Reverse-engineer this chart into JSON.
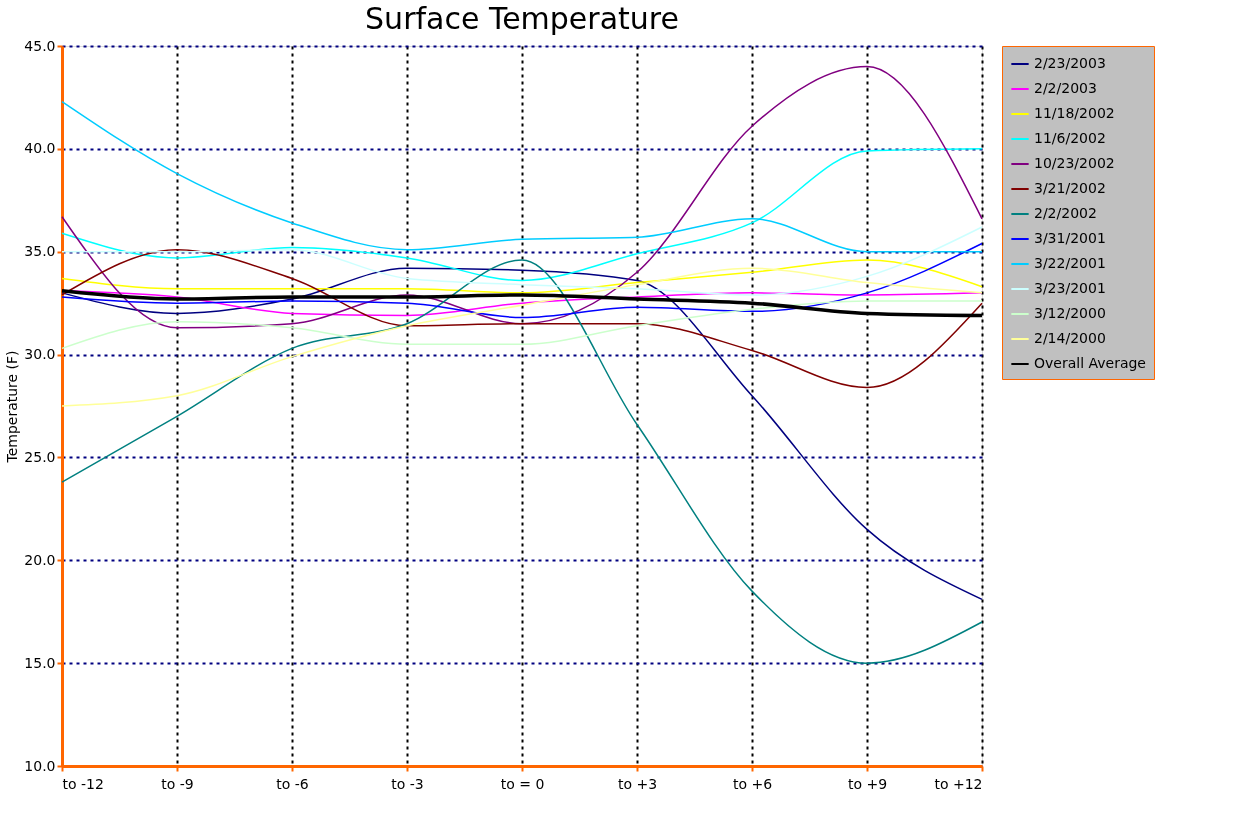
{
  "chart_data": {
    "type": "line",
    "title": "Surface Temperature",
    "ylabel": "Temperature (F)",
    "categories": [
      "to -12",
      "to -9",
      "to -6",
      "to -3",
      "to = 0",
      "to +3",
      "to +6",
      "to +9",
      "to +12"
    ],
    "series": [
      {
        "name": "2/23/2003",
        "color": "#000080",
        "values": [
          33.0,
          32.0,
          32.7,
          34.2,
          34.1,
          33.6,
          28.0,
          21.5,
          18.1
        ]
      },
      {
        "name": "2/2/2003",
        "color": "#ff00ff",
        "values": [
          33.1,
          32.8,
          32.0,
          31.9,
          32.5,
          32.8,
          33.0,
          32.9,
          33.0
        ]
      },
      {
        "name": "11/18/2002",
        "color": "#ffff00",
        "values": [
          33.7,
          33.2,
          33.2,
          33.2,
          33.0,
          33.5,
          34.0,
          34.6,
          33.3
        ]
      },
      {
        "name": "11/6/2002",
        "color": "#00ffff",
        "values": [
          35.9,
          34.7,
          35.2,
          34.7,
          33.6,
          34.9,
          36.4,
          39.9,
          40.0
        ]
      },
      {
        "name": "10/23/2002",
        "color": "#800080",
        "values": [
          36.7,
          31.3,
          31.5,
          32.9,
          31.5,
          34.0,
          41.1,
          44.0,
          36.6
        ]
      },
      {
        "name": "3/21/2002",
        "color": "#800000",
        "values": [
          32.9,
          35.1,
          33.7,
          31.4,
          31.5,
          31.5,
          30.2,
          28.4,
          32.5
        ]
      },
      {
        "name": "2/2/2002",
        "color": "#008080",
        "values": [
          23.8,
          27.0,
          30.3,
          31.5,
          34.6,
          26.6,
          18.5,
          15.0,
          17.0
        ]
      },
      {
        "name": "3/31/2001",
        "color": "#0000ff",
        "values": [
          32.8,
          32.5,
          32.6,
          32.5,
          31.8,
          32.3,
          32.1,
          33.0,
          35.4
        ]
      },
      {
        "name": "3/22/2001",
        "color": "#00ccff",
        "values": [
          42.3,
          38.8,
          36.4,
          35.1,
          35.6,
          35.7,
          36.6,
          35.0,
          35.0
        ]
      },
      {
        "name": "3/23/2001",
        "color": "#ccffff",
        "values": [
          35.0,
          35.0,
          35.1,
          33.7,
          33.4,
          33.2,
          32.9,
          33.8,
          36.2
        ]
      },
      {
        "name": "3/12/2000",
        "color": "#ccffcc",
        "values": [
          30.3,
          31.6,
          31.3,
          30.5,
          30.5,
          31.4,
          32.2,
          32.6,
          32.6
        ]
      },
      {
        "name": "2/14/2000",
        "color": "#ffff99",
        "values": [
          27.5,
          28.0,
          29.9,
          31.4,
          32.4,
          33.4,
          34.2,
          33.5,
          33.0
        ]
      },
      {
        "name": "Overall Average",
        "color": "#000000",
        "values": [
          33.1,
          32.7,
          32.8,
          32.8,
          32.9,
          32.7,
          32.5,
          32.0,
          31.9
        ]
      }
    ],
    "ylim": [
      10,
      45
    ],
    "yticks": [
      {
        "value": 10,
        "label": "10.0"
      },
      {
        "value": 15,
        "label": "15.0"
      },
      {
        "value": 20,
        "label": "20.0"
      },
      {
        "value": 25,
        "label": "25.0"
      },
      {
        "value": 30,
        "label": "30.0"
      },
      {
        "value": 35,
        "label": "35.0"
      },
      {
        "value": 40,
        "label": "40.0"
      },
      {
        "value": 45,
        "label": "45.0"
      }
    ],
    "grid": true,
    "legend": "right",
    "marker": "none",
    "line_style": "solid"
  }
}
